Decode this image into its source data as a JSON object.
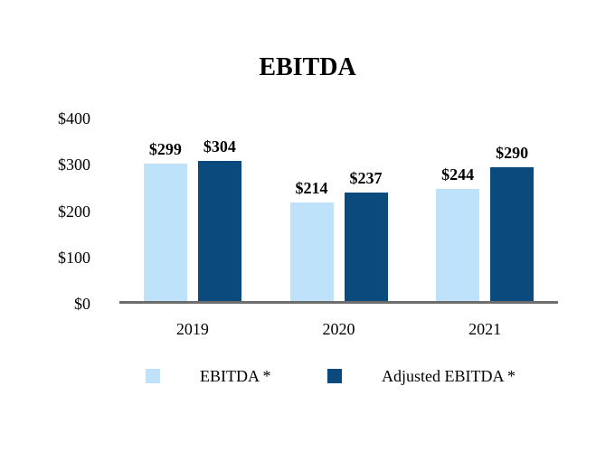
{
  "chart_data": {
    "type": "bar",
    "title": "EBITDA",
    "categories": [
      "2019",
      "2020",
      "2021"
    ],
    "series": [
      {
        "name": "EBITDA *",
        "color": "#BEE2FA",
        "values": [
          299,
          214,
          244
        ],
        "data_labels": [
          "$299",
          "$214",
          "$244"
        ]
      },
      {
        "name": "Adjusted EBITDA *",
        "color": "#0A4A7C",
        "values": [
          304,
          237,
          290
        ],
        "data_labels": [
          "$304",
          "$237",
          "$290"
        ]
      }
    ],
    "ylim": [
      0,
      400
    ],
    "yticks": [
      {
        "value": 400,
        "label": "$400"
      },
      {
        "value": 300,
        "label": "$300"
      },
      {
        "value": 200,
        "label": "$200"
      },
      {
        "value": 100,
        "label": "$100"
      },
      {
        "value": 0,
        "label": "$0"
      }
    ],
    "grid": false,
    "legend_position": "bottom",
    "axis_line_color": "#6D6D6D",
    "text_color": "#000000"
  }
}
